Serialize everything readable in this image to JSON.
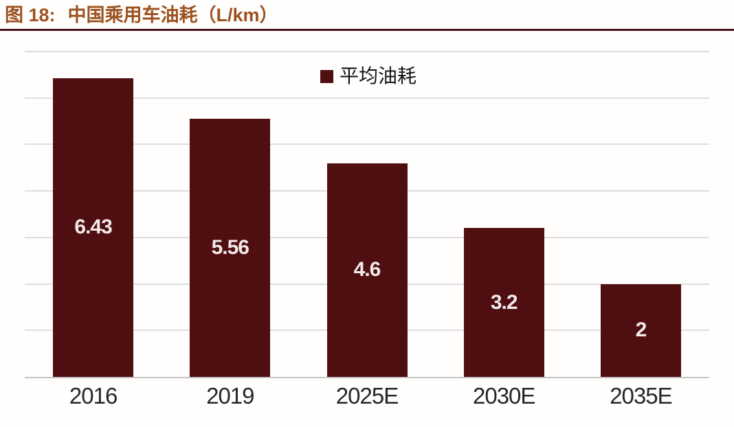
{
  "header": {
    "figure_label": "图 18:",
    "title": "中国乘用车油耗（L/km）"
  },
  "chart_data": {
    "type": "bar",
    "title": "中国乘用车油耗（L/km）",
    "categories": [
      "2016",
      "2019",
      "2025E",
      "2030E",
      "2035E"
    ],
    "series": [
      {
        "name": "平均油耗",
        "values": [
          6.43,
          5.56,
          4.6,
          3.2,
          2
        ]
      }
    ],
    "value_labels": [
      "6.43",
      "5.56",
      "4.6",
      "3.2",
      "2"
    ],
    "value_label_position": "centered-inside-bar",
    "xlabel": "",
    "ylabel": "",
    "ylim": [
      0,
      7
    ],
    "gridline_step": 1,
    "grid": true,
    "y_axis_labels_visible": false,
    "legend_position": "top-center"
  },
  "colors": {
    "bar": "#4f0e10",
    "title_text": "#9c5120",
    "rule": "#4a1420",
    "gridline": "#dedede",
    "axis_line": "#c4c4c4",
    "x_label": "#262626",
    "value_label": "#f2eaea",
    "legend_text": "#151515",
    "background": "#fffefc"
  }
}
